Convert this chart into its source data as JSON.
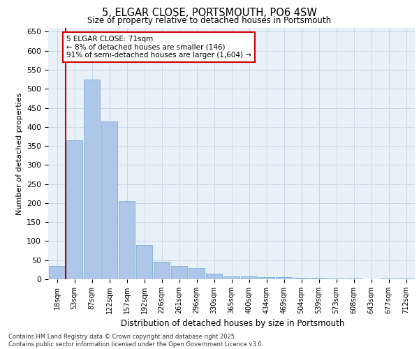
{
  "title": "5, ELGAR CLOSE, PORTSMOUTH, PO6 4SW",
  "subtitle": "Size of property relative to detached houses in Portsmouth",
  "xlabel": "Distribution of detached houses by size in Portsmouth",
  "ylabel": "Number of detached properties",
  "categories": [
    "18sqm",
    "53sqm",
    "87sqm",
    "122sqm",
    "157sqm",
    "192sqm",
    "226sqm",
    "261sqm",
    "296sqm",
    "330sqm",
    "365sqm",
    "400sqm",
    "434sqm",
    "469sqm",
    "504sqm",
    "539sqm",
    "573sqm",
    "608sqm",
    "643sqm",
    "677sqm",
    "712sqm"
  ],
  "values": [
    35,
    365,
    525,
    415,
    205,
    90,
    45,
    35,
    30,
    15,
    8,
    8,
    5,
    5,
    3,
    3,
    2,
    1,
    0,
    1,
    1
  ],
  "bar_color": "#aec6e8",
  "bar_edge_color": "#7aafd4",
  "grid_color": "#c8d8e8",
  "bg_color": "#e8f0f8",
  "vline_x": 0.5,
  "vline_color": "#cc0000",
  "annotation_text": "5 ELGAR CLOSE: 71sqm\n← 8% of detached houses are smaller (146)\n91% of semi-detached houses are larger (1,604) →",
  "annotation_box_color": "#ffffff",
  "annotation_box_edge": "#cc0000",
  "footer_text": "Contains HM Land Registry data © Crown copyright and database right 2025.\nContains public sector information licensed under the Open Government Licence v3.0.",
  "ylim": [
    0,
    660
  ],
  "yticks": [
    0,
    50,
    100,
    150,
    200,
    250,
    300,
    350,
    400,
    450,
    500,
    550,
    600,
    650
  ]
}
